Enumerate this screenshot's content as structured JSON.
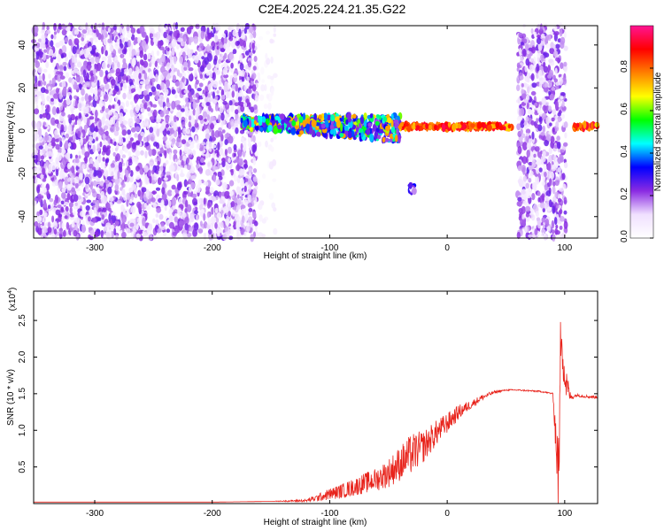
{
  "title": "C2E4.2025.224.21.35.G22",
  "chart_data": [
    {
      "type": "heatmap",
      "xlabel": "Height of straight line (km)",
      "ylabel": "Frequency (Hz)",
      "xlim": [
        -352,
        128
      ],
      "ylim": [
        -50,
        49
      ],
      "xticks": [
        -300,
        -200,
        -100,
        0,
        100
      ],
      "yticks": [
        -40,
        -20,
        0,
        20,
        40
      ],
      "colorbar": {
        "label": "Normalized spectral amplitude",
        "range": [
          0,
          1
        ],
        "ticks": [
          0.0,
          0.2,
          0.4,
          0.6,
          0.8
        ],
        "tick_labels": [
          "0.0",
          "0.2",
          "0.4",
          "0.6",
          "0.8"
        ],
        "colors": [
          "#ffffff",
          "#f0e0ff",
          "#8a2be2",
          "#0000ff",
          "#00ffff",
          "#00ff00",
          "#ffff00",
          "#ff8000",
          "#ff0000",
          "#ff1493"
        ]
      },
      "features": [
        {
          "name": "noise",
          "x": [
            -352,
            -162
          ],
          "y": [
            -50,
            49
          ],
          "level": 0.15
        },
        {
          "name": "noise-fade",
          "x": [
            -162,
            -145
          ],
          "y": [
            -50,
            49
          ],
          "level": 0.05
        },
        {
          "name": "signal",
          "x": [
            -175,
            -40
          ],
          "y": [
            -8,
            8
          ],
          "level": 0.35
        },
        {
          "name": "signal-line",
          "x": [
            -40,
            55
          ],
          "y": [
            1,
            3
          ],
          "level": 0.85
        },
        {
          "name": "noise-band",
          "x": [
            60,
            101
          ],
          "y": [
            -50,
            49
          ],
          "level": 0.15
        },
        {
          "name": "spike",
          "x": [
            -32,
            -28
          ],
          "y": [
            -29,
            -25
          ],
          "level": 0.2
        },
        {
          "name": "signal-line",
          "x": [
            108,
            128
          ],
          "y": [
            1,
            3
          ],
          "level": 0.85
        }
      ]
    },
    {
      "type": "line",
      "xlabel": "Height of straight line (km)",
      "ylabel": "SNR (10 * v/v)",
      "y_multiplier": "(x10",
      "y_multiplier_exp": "4",
      "y_multiplier_close": ")",
      "xlim": [
        -352,
        128
      ],
      "ylim": [
        0,
        2.9
      ],
      "xticks": [
        -300,
        -200,
        -100,
        0,
        100
      ],
      "yticks": [
        0.5,
        1.0,
        1.5,
        2.0,
        2.5
      ],
      "ytick_labels": [
        "0.5",
        "1.0",
        "1.5",
        "2.0",
        "2.5"
      ],
      "series": [
        {
          "color": "#e8231b",
          "x": [
            -352,
            -300,
            -250,
            -200,
            -150,
            -120,
            -110,
            -100,
            -90,
            -80,
            -70,
            -60,
            -50,
            -40,
            -30,
            -20,
            -10,
            0,
            10,
            20,
            30,
            40,
            50,
            60,
            70,
            80,
            90,
            95,
            97,
            100,
            105,
            110,
            120,
            128
          ],
          "y": [
            0.02,
            0.02,
            0.02,
            0.02,
            0.03,
            0.04,
            0.08,
            0.13,
            0.17,
            0.22,
            0.28,
            0.33,
            0.42,
            0.55,
            0.68,
            0.78,
            0.95,
            1.1,
            1.25,
            1.35,
            1.45,
            1.52,
            1.55,
            1.55,
            1.54,
            1.53,
            1.5,
            0.3,
            2.6,
            1.7,
            1.45,
            1.48,
            1.46,
            1.45
          ],
          "noise": [
            0,
            0,
            0,
            0,
            0,
            0.02,
            0.05,
            0.08,
            0.1,
            0.12,
            0.14,
            0.16,
            0.2,
            0.24,
            0.28,
            0.22,
            0.18,
            0.14,
            0.1,
            0.06,
            0.04,
            0.02,
            0.01,
            0.01,
            0.01,
            0.01,
            0.01,
            0.6,
            0.6,
            0.3,
            0.05,
            0.02,
            0.02,
            0.02
          ]
        }
      ]
    }
  ]
}
